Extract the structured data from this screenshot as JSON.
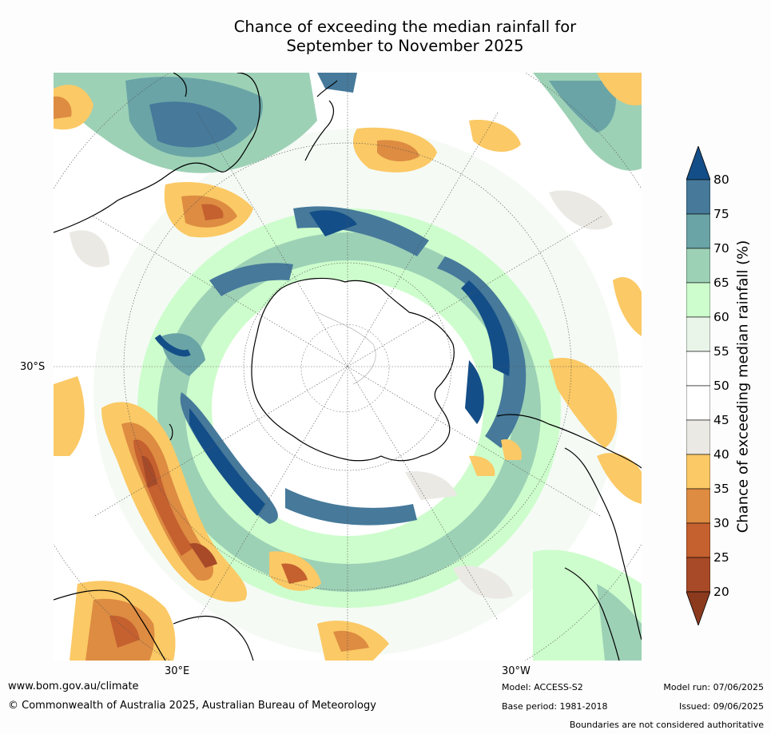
{
  "title": {
    "line1": "Chance of exceeding the median rainfall for",
    "line2": "September to November 2025"
  },
  "axes": {
    "lat_label": "30°S",
    "lon_label_east": "30°E",
    "lon_label_west": "30°W",
    "projection": "south-polar stereographic",
    "graticule": "dotted"
  },
  "colorbar": {
    "label": "Chance of exceeding median rainfall (%)",
    "ticks": [
      "20",
      "25",
      "30",
      "35",
      "40",
      "45",
      "50",
      "55",
      "60",
      "65",
      "70",
      "75",
      "80"
    ],
    "extend": "both",
    "colors": {
      "below": "#8b3a1e",
      "bins": [
        "#a84a28",
        "#c5602f",
        "#dd8c42",
        "#fbc965",
        "#ebe9e4",
        "#ffffff",
        "#ffffff",
        "#eaf5ea",
        "#cdfdcc",
        "#9dd1b6",
        "#6aa4a6",
        "#46799a"
      ],
      "above": "#144e88"
    }
  },
  "footer": {
    "website": "www.bom.gov.au/climate",
    "copyright": "© Commonwealth of Australia 2025, Australian Bureau of Meteorology",
    "model": "Model: ACCESS-S2",
    "base_period": "Base period: 1981-2018",
    "model_run": "Model run: 07/06/2025",
    "issued": "Issued: 09/06/2025",
    "disclaimer": "Boundaries are not considered authoritative"
  }
}
